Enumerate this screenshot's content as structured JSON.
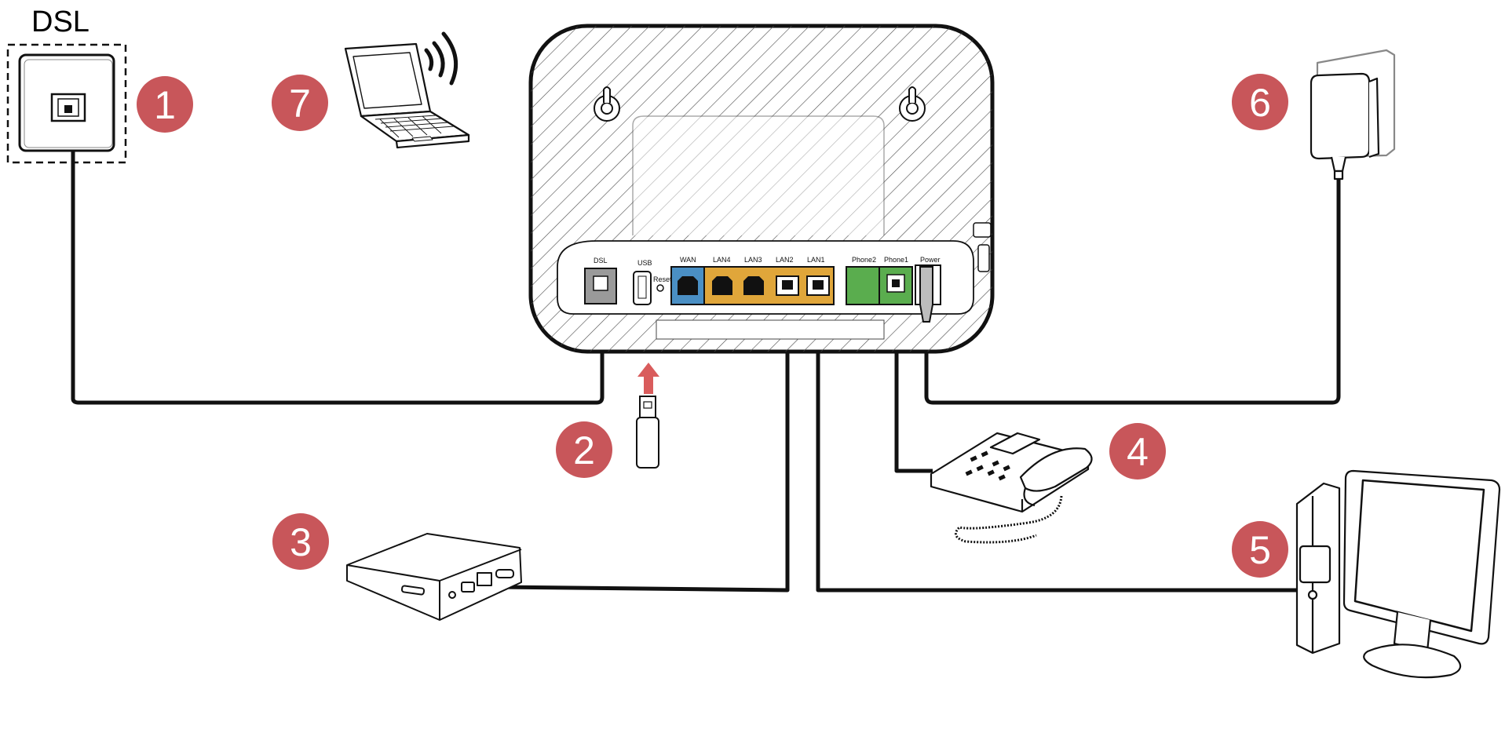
{
  "wall_socket": {
    "label": "DSL"
  },
  "router": {
    "ports": {
      "dsl": "DSL",
      "usb": "USB",
      "reset": "Reset",
      "wan": "WAN",
      "lan4": "LAN4",
      "lan3": "LAN3",
      "lan2": "LAN2",
      "lan1": "LAN1",
      "phone2": "Phone2",
      "phone1": "Phone1",
      "power": "Power"
    }
  },
  "badges": {
    "b1": "1",
    "b2": "2",
    "b3": "3",
    "b4": "4",
    "b5": "5",
    "b6": "6",
    "b7": "7"
  },
  "colors": {
    "badge": "#c8565a",
    "wan": "#4a8fc4",
    "lan": "#e0a63a",
    "phone": "#5aad4e",
    "dsl_port": "#9a9a9a",
    "arrow": "#d95c5c",
    "cable": "#111111"
  }
}
